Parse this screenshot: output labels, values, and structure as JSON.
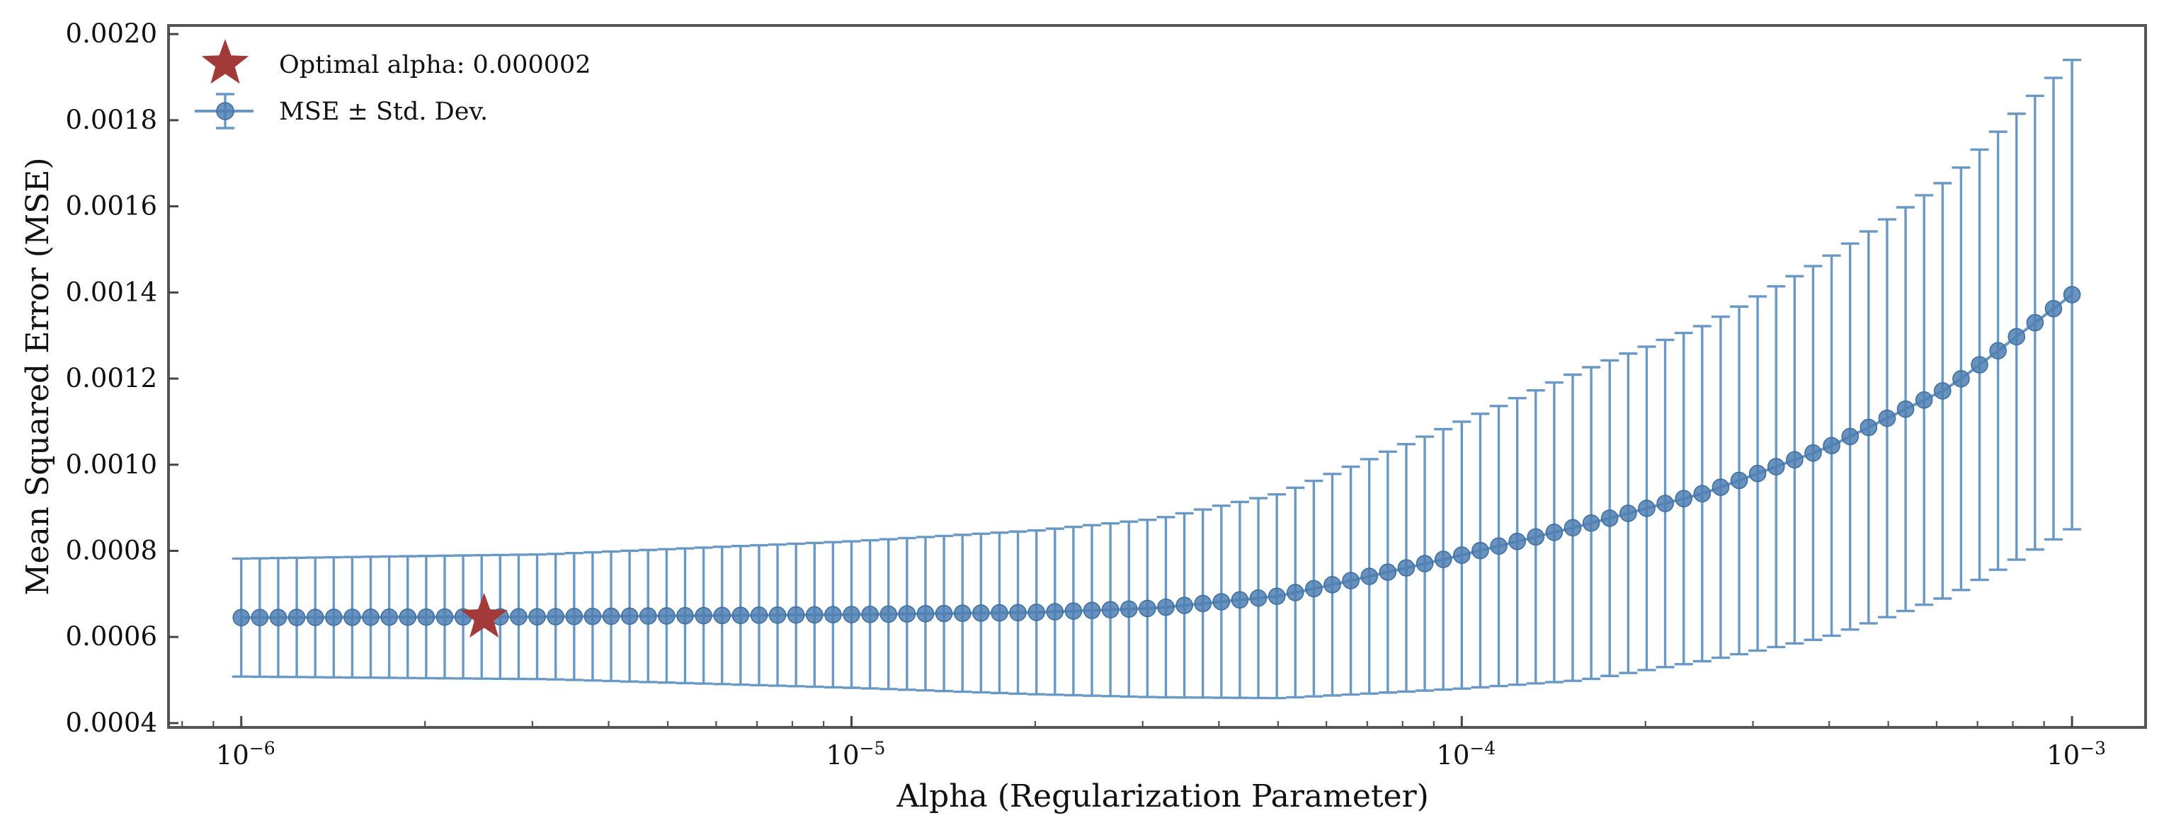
{
  "chart_data": {
    "type": "line",
    "xscale": "log",
    "xlabel": "Alpha (Regularization Parameter)",
    "ylabel": "Mean Squared Error (MSE)",
    "xlim": [
      7.6e-07,
      0.00132
    ],
    "ylim": [
      0.00039,
      0.00202
    ],
    "x_ticks": [
      {
        "value": 1e-06,
        "base": "10",
        "exp": "−6"
      },
      {
        "value": 1e-05,
        "base": "10",
        "exp": "−5"
      },
      {
        "value": 0.0001,
        "base": "10",
        "exp": "−4"
      },
      {
        "value": 0.001,
        "base": "10",
        "exp": "−3"
      }
    ],
    "y_ticks": [
      {
        "value": 0.0004,
        "label": "0.0004"
      },
      {
        "value": 0.0006,
        "label": "0.0006"
      },
      {
        "value": 0.0008,
        "label": "0.0008"
      },
      {
        "value": 0.001,
        "label": "0.0010"
      },
      {
        "value": 0.0012,
        "label": "0.0012"
      },
      {
        "value": 0.0014,
        "label": "0.0014"
      },
      {
        "value": 0.0016,
        "label": "0.0016"
      },
      {
        "value": 0.0018,
        "label": "0.0018"
      },
      {
        "value": 0.002,
        "label": "0.0020"
      }
    ],
    "series": {
      "name": "MSE ± Std. Dev.",
      "color": "#6a98c4",
      "marker_color": "#4f7fb3",
      "n_points": 100,
      "x_log_range": [
        -6,
        -3
      ],
      "profile_log_alpha": [
        -6.0,
        -5.5,
        -5.0,
        -4.7,
        -4.5,
        -4.3,
        -4.2,
        -4.0,
        -3.8,
        -3.6,
        -3.4,
        -3.2,
        -3.0
      ],
      "profile_mse": [
        0.000645,
        0.000647,
        0.000652,
        0.000657,
        0.000667,
        0.000695,
        0.000725,
        0.00079,
        0.00086,
        0.000935,
        0.00104,
        0.00118,
        0.001395
      ],
      "profile_std": [
        0.000137,
        0.000145,
        0.00017,
        0.00019,
        0.000207,
        0.000237,
        0.00026,
        0.00031,
        0.00036,
        0.00039,
        0.00044,
        0.000485,
        0.000545
      ]
    },
    "optimal": {
      "alpha": 2.5e-06,
      "mse": 0.000645,
      "label": "Optimal alpha: 0.000002",
      "color": "#a33a3a"
    },
    "legend_position": "top-left"
  }
}
